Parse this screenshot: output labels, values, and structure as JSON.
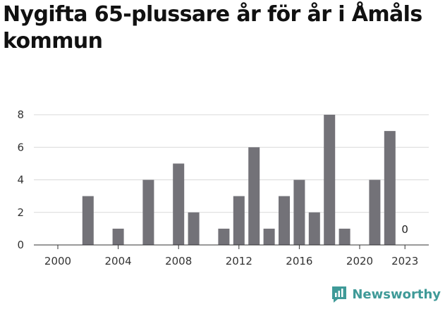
{
  "title": "Nygifta 65-plussare år för år i Åmåls kommun",
  "brand": {
    "name": "Newsworthy",
    "color": "#3f9a98"
  },
  "colors": {
    "bar": "#737278",
    "grid": "#d9d9d9",
    "axis": "#333333"
  },
  "chart_data": {
    "type": "bar",
    "title": "Nygifta 65-plussare år för år i Åmåls kommun",
    "xlabel": "",
    "ylabel": "",
    "categories": [
      2000,
      2001,
      2002,
      2003,
      2004,
      2005,
      2006,
      2007,
      2008,
      2009,
      2010,
      2011,
      2012,
      2013,
      2014,
      2015,
      2016,
      2017,
      2018,
      2019,
      2020,
      2021,
      2022,
      2023
    ],
    "values": [
      0,
      0,
      3,
      0,
      1,
      0,
      4,
      0,
      5,
      2,
      0,
      1,
      3,
      6,
      1,
      3,
      4,
      2,
      8,
      1,
      0,
      4,
      7,
      0
    ],
    "ylim": [
      0,
      8
    ],
    "yticks": [
      0,
      2,
      4,
      6,
      8
    ],
    "xticks": [
      2000,
      2004,
      2008,
      2012,
      2016,
      2020,
      2023
    ],
    "annotations": [
      {
        "x": 2023,
        "text": "0"
      }
    ],
    "grid": true
  }
}
